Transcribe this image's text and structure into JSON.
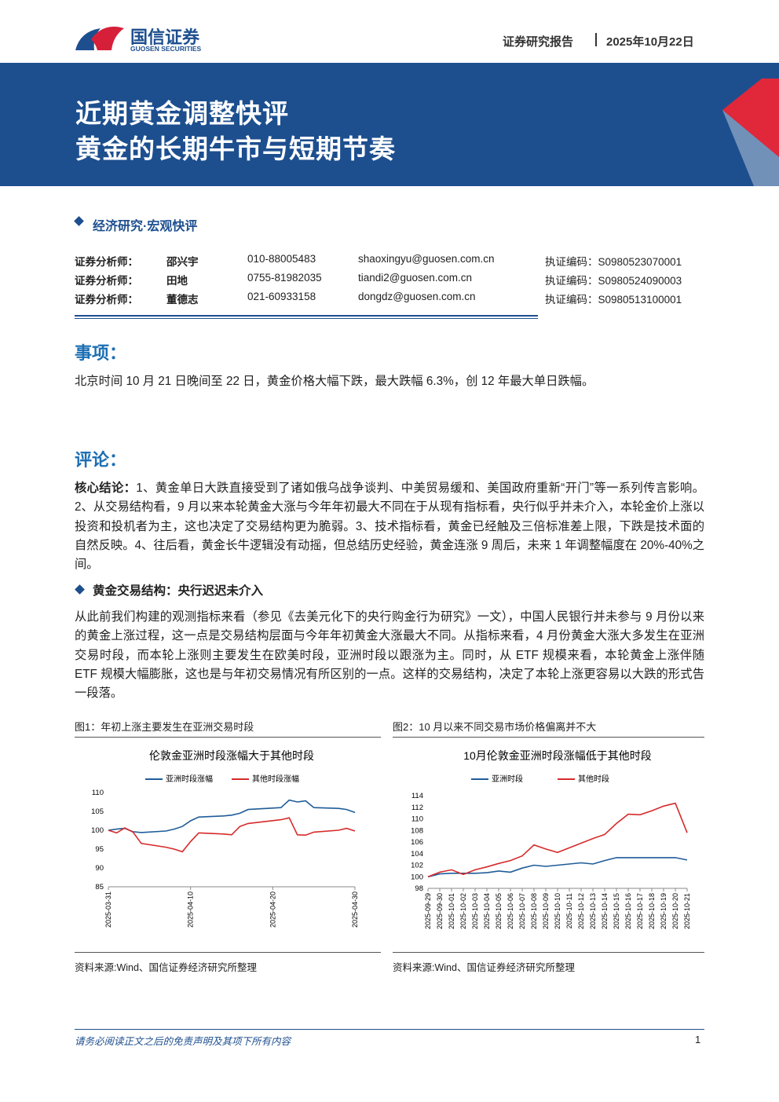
{
  "header": {
    "brand": "国信证券",
    "brand_en": "GUOSEN SECURITIES",
    "report_type": "证券研究报告",
    "date": "2025年10月22日"
  },
  "banner": {
    "title_line1": "近期黄金调整快评",
    "title_line2": "黄金的长期牛市与短期节奏"
  },
  "section_tag": "经济研究·宏观快评",
  "analysts": [
    [
      "证券分析师：",
      "邵兴宇",
      "010-88005483",
      "shaoxingyu@guosen.com.cn",
      "执证编码：S0980523070001"
    ],
    [
      "证券分析师：",
      "田地",
      "0755-81982035",
      "tiandi2@guosen.com.cn",
      "执证编码：S0980524090003"
    ],
    [
      "证券分析师：",
      "董德志",
      "021-60933158",
      "dongdz@guosen.com.cn",
      "执证编码：S0980513100001"
    ]
  ],
  "events": {
    "heading": "事项：",
    "text": "北京时间 10 月 21 日晚间至 22 日，黄金价格大幅下跌，最大跌幅 6.3%，创 12 年最大单日跌幅。"
  },
  "comments": {
    "heading": "评论：",
    "core_label": "核心结论：",
    "core_text": "1、黄金单日大跌直接受到了诸如俄乌战争谈判、中美贸易缓和、美国政府重新“开门”等一系列传言影响。2、从交易结构看，9 月以来本轮黄金大涨与今年年初最大不同在于从现有指标看，央行似乎并未介入，本轮金价上涨以投资和投机者为主，这也决定了交易结构更为脆弱。3、技术指标看，黄金已经触及三倍标准差上限，下跌是技术面的自然反映。4、往后看，黄金长牛逻辑没有动摇，但总结历史经验，黄金连涨 9 周后，未来 1 年调整幅度在 20%-40%之间。",
    "subheading": "黄金交易结构：央行迟迟未介入",
    "paragraph": "从此前我们构建的观测指标来看（参见《去美元化下的央行购金行为研究》一文），中国人民银行并未参与 9 月份以来的黄金上涨过程，这一点是交易结构层面与今年年初黄金大涨最大不同。从指标来看，4 月份黄金大涨大多发生在亚洲交易时段，而本轮上涨则主要发生在欧美时段，亚洲时段以跟涨为主。同时，从 ETF 规模来看，本轮黄金上涨伴随 ETF 规模大幅膨胀，这也是与年初交易情况有所区别的一点。这样的交易结构，决定了本轮上涨更容易以大跌的形式告一段落。"
  },
  "figures": [
    {
      "caption": "图1：年初上涨主要发生在亚洲交易时段",
      "source": "资料来源:Wind、国信证券经济研究所整理",
      "chart": {
        "type": "line",
        "title": "伦敦金亚洲时段涨幅大于其他时段",
        "x": [
          "2025-03-31",
          "2025-04-01",
          "2025-04-02",
          "2025-04-03",
          "2025-04-04",
          "2025-04-07",
          "2025-04-08",
          "2025-04-09",
          "2025-04-10",
          "2025-04-11",
          "2025-04-14",
          "2025-04-15",
          "2025-04-16",
          "2025-04-17",
          "2025-04-21",
          "2025-04-22",
          "2025-04-23",
          "2025-04-24",
          "2025-04-25",
          "2025-04-28",
          "2025-04-29",
          "2025-04-30"
        ],
        "series": [
          {
            "name": "亚洲时段涨幅",
            "color": "#1f5c99",
            "values": [
              100,
              100.3,
              100.5,
              99.6,
              99.4,
              99.8,
              100.3,
              101,
              102.5,
              103.5,
              103.8,
              104,
              104.5,
              105.5,
              106,
              108,
              107.5,
              107.8,
              106,
              105.8,
              105.5,
              104.7
            ]
          },
          {
            "name": "其他时段涨幅",
            "color": "#d62b2b",
            "values": [
              100,
              99.3,
              100.6,
              99.5,
              96.5,
              95.5,
              95,
              94.3,
              97,
              99.3,
              99,
              98.8,
              101,
              101.8,
              102.8,
              103.3,
              98.8,
              98.7,
              99.5,
              100,
              100.5,
              99.8
            ]
          }
        ],
        "xlim": [
          "2025-03-31",
          "2025-04-30"
        ],
        "xticks": [
          "2025-03-31",
          "2025-04-10",
          "2025-04-20",
          "2025-04-30"
        ],
        "ylim": [
          85,
          110
        ],
        "yticks": [
          85,
          90,
          95,
          100,
          105,
          110
        ],
        "grid": false,
        "legend": "top"
      }
    },
    {
      "caption": "图2：10 月以来不同交易市场价格偏离并不大",
      "source": "资料来源:Wind、国信证券经济研究所整理",
      "chart": {
        "type": "line",
        "title": "10月伦敦金亚洲时段涨幅低于其他时段",
        "categories": [
          "2025-09-29",
          "2025-09-30",
          "2025-10-01",
          "2025-10-02",
          "2025-10-03",
          "2025-10-04",
          "2025-10-05",
          "2025-10-06",
          "2025-10-07",
          "2025-10-08",
          "2025-10-09",
          "2025-10-10",
          "2025-10-11",
          "2025-10-12",
          "2025-10-13",
          "2025-10-14",
          "2025-10-15",
          "2025-10-16",
          "2025-10-17",
          "2025-10-18",
          "2025-10-19",
          "2025-10-20",
          "2025-10-21"
        ],
        "series": [
          {
            "name": "亚洲时段",
            "color": "#1f5c99",
            "values": [
              100,
              100.5,
              100.6,
              100.6,
              100.6,
              100.7,
              101,
              100.8,
              101.5,
              102,
              101.8,
              102,
              102.2,
              102.4,
              102.2,
              102.8,
              103.3,
              103.3,
              103.3,
              103.3,
              103.3,
              103.3,
              102.9
            ]
          },
          {
            "name": "其他时段",
            "color": "#d62b2b",
            "values": [
              100,
              100.8,
              101.2,
              100.4,
              101.2,
              101.7,
              102.3,
              102.8,
              103.6,
              105.5,
              104.8,
              104.2,
              105,
              105.8,
              106.6,
              107.3,
              109.2,
              110.8,
              110.7,
              111.4,
              112.2,
              112.7,
              107.6
            ]
          }
        ],
        "ylim": [
          98,
          114
        ],
        "yticks": [
          98,
          100,
          102,
          104,
          106,
          108,
          110,
          112,
          114
        ],
        "grid": false,
        "legend": "top"
      }
    }
  ],
  "footer": {
    "disclaimer": "请务必阅读正文之后的免责声明及其项下所有内容",
    "page": "1"
  }
}
